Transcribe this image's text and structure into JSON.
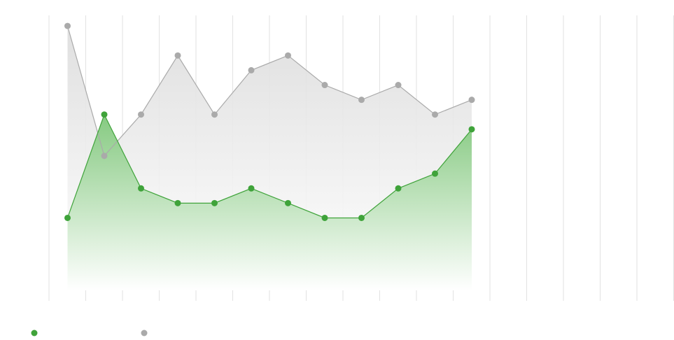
{
  "chart_data": {
    "type": "area",
    "title": "",
    "xlabel": "",
    "ylabel": "",
    "x": [
      1,
      2,
      3,
      4,
      5,
      6,
      7,
      8,
      9,
      10,
      11,
      12
    ],
    "ylim": [
      0,
      19
    ],
    "grid": "vertical",
    "legend": "bottom-left",
    "series": [
      {
        "values": [
          5,
          12,
          7,
          6,
          6,
          7,
          6,
          5,
          5,
          7,
          8,
          11
        ],
        "color": "#3fa33a",
        "fill_top": "#7fc77a",
        "fill_bottom": "#ffffff"
      },
      {
        "values": [
          18,
          9.2,
          12,
          16,
          12,
          15,
          16,
          14,
          13,
          14,
          12,
          13
        ],
        "color": "#aaaaaa",
        "fill_top": "#dcdcdc",
        "fill_bottom": "#ffffff"
      }
    ]
  }
}
